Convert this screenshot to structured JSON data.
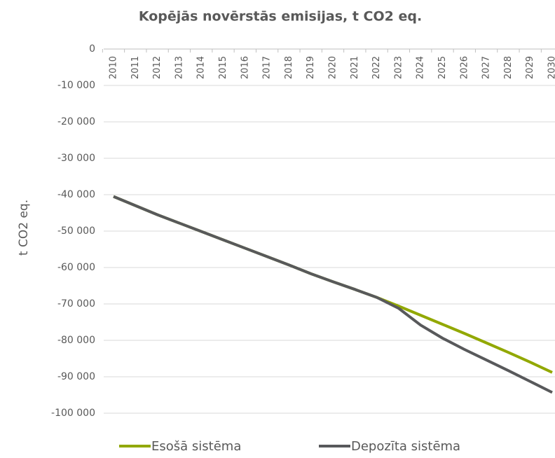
{
  "chart_data": {
    "type": "line",
    "title": "Kopējās novērstās emisijas,  t CO2 eq.",
    "y_label": "t CO2 eq.",
    "categories": [
      "2010",
      "2011",
      "2012",
      "2013",
      "2014",
      "2015",
      "2016",
      "2017",
      "2018",
      "2019",
      "2020",
      "2021",
      "2022",
      "2023",
      "2024",
      "2025",
      "2026",
      "2027",
      "2028",
      "2029",
      "2030"
    ],
    "series": [
      {
        "name": "Esošā sistēma",
        "color": "#92a800",
        "values": [
          -40500,
          -43000,
          -45500,
          -47800,
          -50100,
          -52400,
          -54700,
          -57000,
          -59300,
          -61700,
          -63900,
          -66000,
          -68200,
          -70600,
          -73100,
          -75600,
          -78100,
          -80700,
          -83300,
          -86000,
          -88800
        ]
      },
      {
        "name": "Depozīta sistēma",
        "color": "#58595b",
        "values": [
          -40500,
          -43000,
          -45500,
          -47800,
          -50100,
          -52400,
          -54700,
          -57000,
          -59300,
          -61700,
          -63900,
          -66000,
          -68200,
          -71200,
          -75800,
          -79400,
          -82500,
          -85400,
          -88300,
          -91300,
          -94300
        ]
      }
    ],
    "ylim": [
      -100000,
      0
    ],
    "yticks": [
      0,
      {
        "value": -10000,
        "label": "-10 000"
      },
      {
        "value": -20000,
        "label": "-20 000"
      },
      {
        "value": -30000,
        "label": "-30 000"
      },
      {
        "value": -40000,
        "label": "-40 000"
      },
      {
        "value": -50000,
        "label": "-50 000"
      },
      {
        "value": -60000,
        "label": "-60 000"
      },
      {
        "value": -70000,
        "label": "-70 000"
      },
      {
        "value": -80000,
        "label": "-80 000"
      },
      {
        "value": -90000,
        "label": "-90 000"
      },
      {
        "value": -100000,
        "label": "-100 000"
      }
    ],
    "grid": true,
    "legend": "bottom"
  }
}
